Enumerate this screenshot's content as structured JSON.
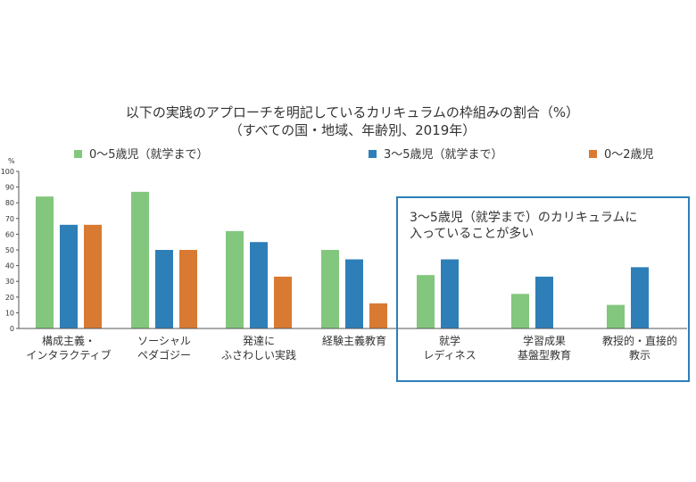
{
  "chart_data": {
    "type": "bar",
    "title": "以下の実践のアプローチを明記しているカリキュラムの枠組みの割合（%）",
    "subtitle": "（すべての国・地域、年齢別、2019年）",
    "ylabel": "%",
    "ylim": [
      0,
      100
    ],
    "yticks": [
      "0",
      "10",
      "20",
      "30",
      "40",
      "50",
      "60",
      "70",
      "80",
      "90",
      "100"
    ],
    "grid": false,
    "legend_position": "top",
    "categories": [
      [
        "構成主義・",
        "インタラクティブ"
      ],
      [
        "ソーシャル",
        "ペダゴジー"
      ],
      [
        "発達に",
        "ふさわしい実践"
      ],
      [
        "経験主義教育"
      ],
      [
        "就学",
        "レディネス"
      ],
      [
        "学習成果",
        "基盤型教育"
      ],
      [
        "教授的・直接的",
        "教示"
      ]
    ],
    "series": [
      {
        "name": "0～5歳児（就学まで）",
        "color": "#82c77d",
        "values": [
          84,
          87,
          62,
          50,
          34,
          22,
          15
        ]
      },
      {
        "name": "3～5歳児（就学まで）",
        "color": "#2e7fb8",
        "values": [
          66,
          50,
          55,
          44,
          44,
          33,
          39
        ]
      },
      {
        "name": "0～2歳児",
        "color": "#d97a33",
        "values": [
          66,
          50,
          33,
          16,
          null,
          null,
          null
        ]
      }
    ],
    "annotation": {
      "lines": [
        "3～5歳児（就学まで）のカリキュラムに",
        "入っていることが多い"
      ],
      "border_color": "#2e7fb8"
    }
  }
}
